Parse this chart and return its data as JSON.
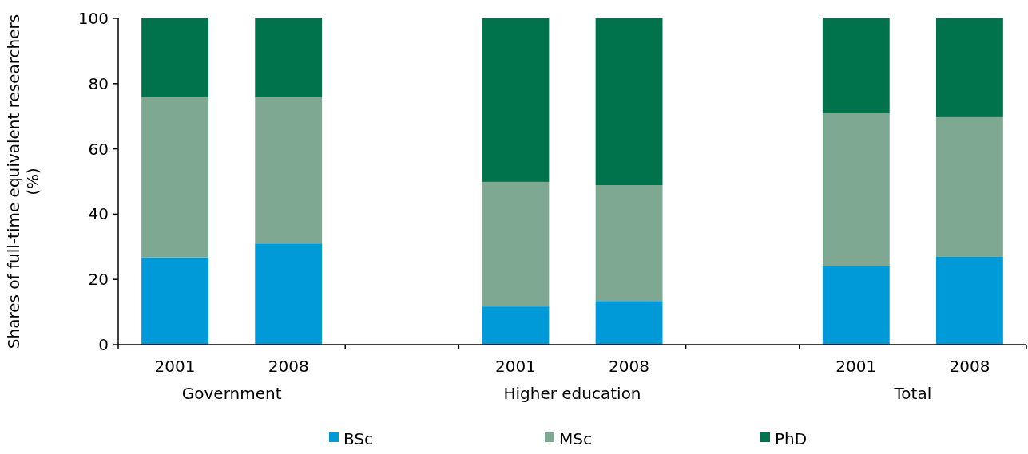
{
  "chart_data": {
    "type": "bar",
    "stacked": true,
    "ylabel": "Shares of full-time equivalent researchers (%)",
    "categories": [
      "2001",
      "2008",
      null,
      "2001",
      "2008",
      null,
      "2001",
      "2008"
    ],
    "series": [
      {
        "name": "BSc",
        "color": "#009ad8",
        "values": [
          26.7,
          31.0,
          null,
          11.7,
          13.4,
          null,
          24.0,
          26.9
        ]
      },
      {
        "name": "MSc",
        "color": "#7ea892",
        "values": [
          49.1,
          44.8,
          null,
          38.2,
          35.5,
          null,
          46.9,
          42.8
        ]
      },
      {
        "name": "PhD",
        "color": "#00734d",
        "values": [
          24.2,
          24.2,
          null,
          50.1,
          51.1,
          null,
          29.1,
          30.3
        ]
      }
    ],
    "ylim": [
      0,
      100
    ],
    "yticks": [
      0,
      20,
      40,
      60,
      80,
      100
    ],
    "grid": false,
    "legend": "bottom",
    "annotations": [
      "Government",
      "Higher education",
      "Total"
    ]
  }
}
